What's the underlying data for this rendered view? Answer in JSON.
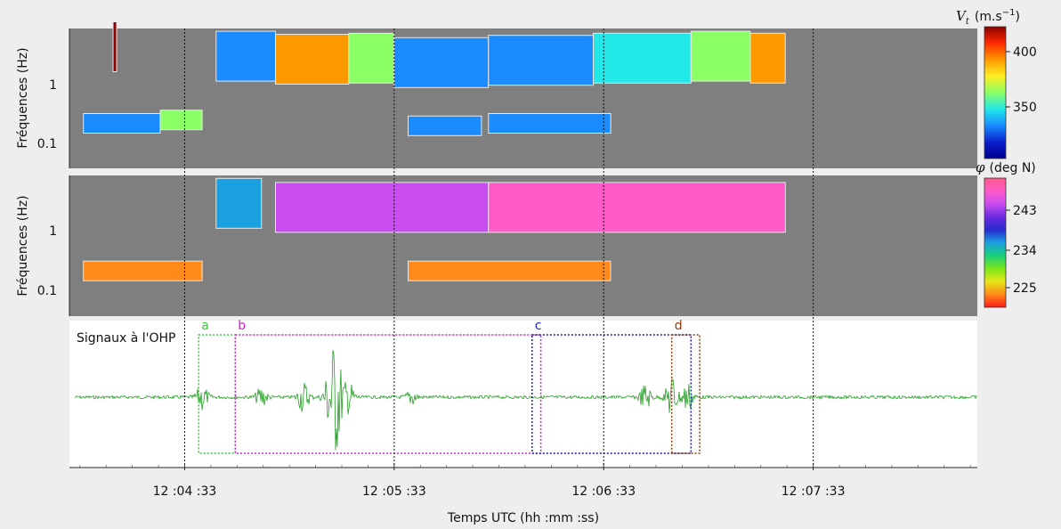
{
  "chart_data": [
    {
      "type": "heatmap",
      "panel": "velocity",
      "ylabel": "Fréquences (Hz)",
      "yticks": [
        "1",
        "0.1"
      ],
      "yscale": "log",
      "colorbar": {
        "label": "V_t (m.s^-1)",
        "label_main": "V",
        "label_sub": "t",
        "label_unit": "(m.s",
        "label_exp": "−1",
        "label_close": ")",
        "ticks": [
          "400",
          "350"
        ],
        "colors": [
          "#8b0000",
          "#ff2a00",
          "#ff9900",
          "#ffee22",
          "#8aff66",
          "#22e8e8",
          "#1a8cff",
          "#0a1fcc",
          "#00008b"
        ]
      },
      "blobs": [
        {
          "t0": 12.5,
          "t1": 12.55,
          "f": 4.0,
          "val": 415
        },
        {
          "t0": 42.0,
          "t1": 59.0,
          "f": 2.8,
          "val": 352
        },
        {
          "t0": 59.0,
          "t1": 80.0,
          "f": 2.5,
          "val": 395
        },
        {
          "t0": 80.0,
          "t1": 93.0,
          "f": 2.6,
          "val": 370
        },
        {
          "t0": 93.0,
          "t1": 120.0,
          "f": 2.2,
          "val": 352
        },
        {
          "t0": 120.0,
          "t1": 150.0,
          "f": 2.4,
          "val": 345
        },
        {
          "t0": 150.0,
          "t1": 178.0,
          "f": 2.6,
          "val": 358
        },
        {
          "t0": 178.0,
          "t1": 195.0,
          "f": 2.8,
          "val": 372
        },
        {
          "t0": 195.0,
          "t1": 205.0,
          "f": 2.6,
          "val": 390
        },
        {
          "t0": 4.0,
          "t1": 26.0,
          "f": 0.22,
          "val": 345
        },
        {
          "t0": 26.0,
          "t1": 38.0,
          "f": 0.25,
          "val": 372
        },
        {
          "t0": 97.0,
          "t1": 118.0,
          "f": 0.2,
          "val": 345
        },
        {
          "t0": 120.0,
          "t1": 155.0,
          "f": 0.22,
          "val": 348
        }
      ]
    },
    {
      "type": "heatmap",
      "panel": "direction",
      "ylabel": "Fréquences (Hz)",
      "yticks": [
        "1",
        "0.1"
      ],
      "yscale": "log",
      "colorbar": {
        "label": "φ (deg N)",
        "label_main": "φ",
        "label_unit": "(deg N)",
        "ticks": [
          "243",
          "234",
          "225"
        ],
        "colors": [
          "#ff5a8a",
          "#ff5ac8",
          "#c84cf0",
          "#6a2ae0",
          "#2a2ad0",
          "#1aa0e0",
          "#1ad07a",
          "#7ae61a",
          "#e6e61a",
          "#ff8a1a",
          "#ff1a1a"
        ]
      },
      "blobs": [
        {
          "t0": 42.0,
          "t1": 55.0,
          "f": 2.8,
          "val": 233
        },
        {
          "t0": 59.0,
          "t1": 120.0,
          "f": 2.4,
          "val": 244
        },
        {
          "t0": 120.0,
          "t1": 205.0,
          "f": 2.4,
          "val": 246
        },
        {
          "t0": 4.0,
          "t1": 38.0,
          "f": 0.22,
          "val": 222
        },
        {
          "t0": 97.0,
          "t1": 155.0,
          "f": 0.22,
          "val": 222
        }
      ]
    },
    {
      "type": "line",
      "panel": "signal",
      "title": "Signaux à l'OHP",
      "color": "#22a022",
      "bursts": [
        {
          "t": 38.0,
          "amp": 0.25
        },
        {
          "t": 55.0,
          "amp": 0.2
        },
        {
          "t": 67.0,
          "amp": 0.3
        },
        {
          "t": 74.5,
          "amp": 0.55
        },
        {
          "t": 76.5,
          "amp": 1.0
        },
        {
          "t": 80.0,
          "amp": 0.3
        },
        {
          "t": 98.0,
          "amp": 0.15
        },
        {
          "t": 165.0,
          "amp": 0.25
        },
        {
          "t": 172.5,
          "amp": 0.45
        },
        {
          "t": 177.0,
          "amp": 0.3
        }
      ],
      "boxes": [
        {
          "label": "a",
          "t0": 37.0,
          "t1": 47.5,
          "color": "#33cc33"
        },
        {
          "label": "b",
          "t0": 47.5,
          "t1": 135.0,
          "color": "#cc22cc"
        },
        {
          "label": "c",
          "t0": 132.5,
          "t1": 178.0,
          "color": "#1a1aaa"
        },
        {
          "label": "d",
          "t0": 172.5,
          "t1": 180.5,
          "color": "#8a3a0a"
        }
      ]
    }
  ],
  "xaxis": {
    "label": "Temps UTC (hh :mm :ss)",
    "ticks": [
      {
        "t": 33,
        "label": "12 :04 :33"
      },
      {
        "t": 93,
        "label": "12 :05 :33"
      },
      {
        "t": 153,
        "label": "12 :06 :33"
      },
      {
        "t": 213,
        "label": "12 :07 :33"
      }
    ],
    "range": [
      0,
      260
    ]
  }
}
